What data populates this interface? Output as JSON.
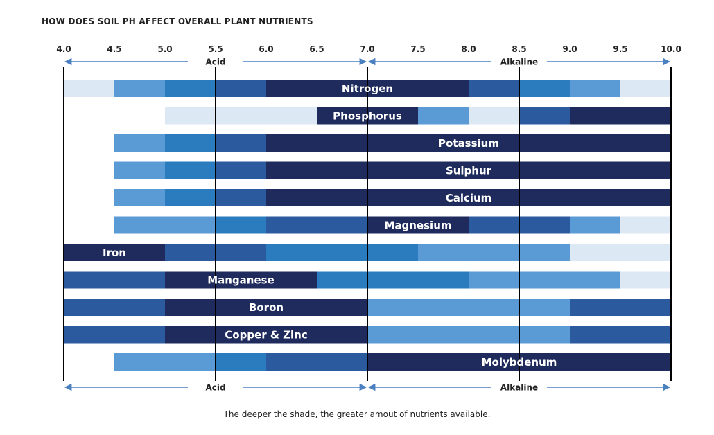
{
  "title": "HOW DOES SOIL PH AFFECT OVERALL PLANT NUTRIENTS",
  "caption": "The deeper the shade, the greater amout of nutrients available.",
  "colors": {
    "shade1": "#dce9f5",
    "shade2": "#5b9bd5",
    "shade3": "#2b7bbf",
    "shade4": "#2c5a9e",
    "shade5": "#1f2b5c",
    "axis": "#000000",
    "arrow": "#4a7fc0"
  },
  "chart_data": {
    "type": "bar",
    "title": "HOW DOES SOIL PH AFFECT OVERALL PLANT NUTRIENTS",
    "xlim": [
      4.0,
      10.0
    ],
    "x_ticks": [
      "4.0",
      "4.5",
      "5.0",
      "5.5",
      "6.0",
      "6.5",
      "7.0",
      "7.5",
      "8.0",
      "8.5",
      "9.0",
      "9.5",
      "10.0"
    ],
    "zones": [
      {
        "label": "Acid",
        "from": 4.0,
        "to": 7.0
      },
      {
        "label": "Alkaline",
        "from": 7.0,
        "to": 10.0
      }
    ],
    "shade_scale": "1 = lightest (least available) to 5 = deepest (most available)",
    "nutrients": [
      {
        "name": "Nitrogen",
        "segments": [
          [
            4.0,
            4.5,
            1
          ],
          [
            4.5,
            5.0,
            2
          ],
          [
            5.0,
            5.5,
            3
          ],
          [
            5.5,
            6.0,
            4
          ],
          [
            6.0,
            8.0,
            5
          ],
          [
            8.0,
            8.5,
            4
          ],
          [
            8.5,
            9.0,
            3
          ],
          [
            9.0,
            9.5,
            2
          ],
          [
            9.5,
            10.0,
            1
          ]
        ]
      },
      {
        "name": "Phosphorus",
        "segments": [
          [
            5.0,
            6.5,
            1
          ],
          [
            6.5,
            7.5,
            5
          ],
          [
            7.5,
            8.0,
            2
          ],
          [
            8.0,
            8.5,
            1
          ],
          [
            8.5,
            9.0,
            4
          ],
          [
            9.0,
            10.0,
            5
          ]
        ]
      },
      {
        "name": "Potassium",
        "segments": [
          [
            4.5,
            5.0,
            2
          ],
          [
            5.0,
            5.5,
            3
          ],
          [
            5.5,
            6.0,
            4
          ],
          [
            6.0,
            10.0,
            5
          ]
        ]
      },
      {
        "name": "Sulphur",
        "segments": [
          [
            4.5,
            5.0,
            2
          ],
          [
            5.0,
            5.5,
            3
          ],
          [
            5.5,
            6.0,
            4
          ],
          [
            6.0,
            10.0,
            5
          ]
        ]
      },
      {
        "name": "Calcium",
        "segments": [
          [
            4.5,
            5.0,
            2
          ],
          [
            5.0,
            5.5,
            3
          ],
          [
            5.5,
            6.0,
            4
          ],
          [
            6.0,
            10.0,
            5
          ]
        ]
      },
      {
        "name": "Magnesium",
        "segments": [
          [
            4.5,
            5.5,
            2
          ],
          [
            5.5,
            6.0,
            3
          ],
          [
            6.0,
            7.0,
            4
          ],
          [
            7.0,
            8.0,
            5
          ],
          [
            8.0,
            9.0,
            4
          ],
          [
            9.0,
            9.5,
            2
          ],
          [
            9.5,
            10.0,
            1
          ]
        ]
      },
      {
        "name": "Iron",
        "segments": [
          [
            4.0,
            5.0,
            5
          ],
          [
            5.0,
            6.0,
            4
          ],
          [
            6.0,
            7.5,
            3
          ],
          [
            7.5,
            9.0,
            2
          ],
          [
            9.0,
            10.0,
            1
          ]
        ]
      },
      {
        "name": "Manganese",
        "segments": [
          [
            4.0,
            5.0,
            4
          ],
          [
            5.0,
            6.5,
            5
          ],
          [
            6.5,
            8.0,
            3
          ],
          [
            8.0,
            9.5,
            2
          ],
          [
            9.5,
            10.0,
            1
          ]
        ]
      },
      {
        "name": "Boron",
        "segments": [
          [
            4.0,
            5.0,
            4
          ],
          [
            5.0,
            7.0,
            5
          ],
          [
            7.0,
            9.0,
            2
          ],
          [
            9.0,
            10.0,
            4
          ]
        ]
      },
      {
        "name": "Copper  & Zinc",
        "segments": [
          [
            4.0,
            5.0,
            4
          ],
          [
            5.0,
            7.0,
            5
          ],
          [
            7.0,
            9.0,
            2
          ],
          [
            9.0,
            10.0,
            4
          ]
        ]
      },
      {
        "name": "Molybdenum",
        "segments": [
          [
            4.5,
            5.5,
            2
          ],
          [
            5.5,
            6.0,
            3
          ],
          [
            6.0,
            7.0,
            4
          ],
          [
            7.0,
            10.0,
            5
          ]
        ]
      }
    ]
  }
}
